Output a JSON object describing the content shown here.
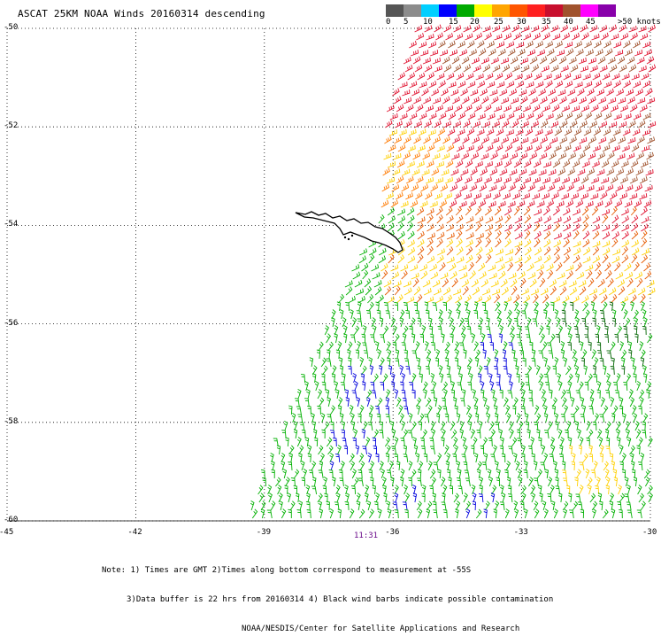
{
  "title": "ASCAT 25KM NOAA Winds 20160314 descending",
  "colorbar": {
    "colors": [
      "#555555",
      "#8c8c8c",
      "#00cfff",
      "#0000ff",
      "#00aa00",
      "#ffff00",
      "#ffa500",
      "#ff5500",
      "#ff2020",
      "#c80f2e",
      "#a0522d",
      "#ff00ff",
      "#8800aa"
    ],
    "tick_labels": [
      "0",
      "5",
      "10",
      "15",
      "20",
      "25",
      "30",
      "35",
      "40",
      "45"
    ],
    "units_label": ">50 knots"
  },
  "lat_labels": [
    "-50",
    "-52",
    "-54",
    "-56",
    "-58",
    "-60"
  ],
  "lon_labels": [
    "-45",
    "-42",
    "-39",
    "-36",
    "-33",
    "-30"
  ],
  "time_label": "11:31",
  "notes": [
    "Note: 1) Times are GMT 2)Times along bottom correspond to measurement at -55S",
    "3)Data buffer is 22 hrs from 20160314 4) Black wind barbs indicate possible contamination",
    "NOAA/NESDIS/Center for Satellite Applications and Research"
  ],
  "map_content": {
    "land": "South Georgia island outline",
    "wind_barb_regions": [
      {
        "area": "north, -50 to -53",
        "speed_class": "red"
      },
      {
        "area": "north-east, -50 to -53",
        "speed_class": "brown"
      },
      {
        "area": "-53 to -54 west edge",
        "speed_class": "orange/yellow"
      },
      {
        "area": "-55 to -56 band",
        "speed_class": "yellow/orange"
      },
      {
        "area": "south, -56 to -60",
        "speed_class": "green"
      },
      {
        "area": "patches near -57.5 to -59.5",
        "speed_class": "blue"
      },
      {
        "area": "patch near -59, -31.5",
        "speed_class": "yellow"
      }
    ]
  }
}
